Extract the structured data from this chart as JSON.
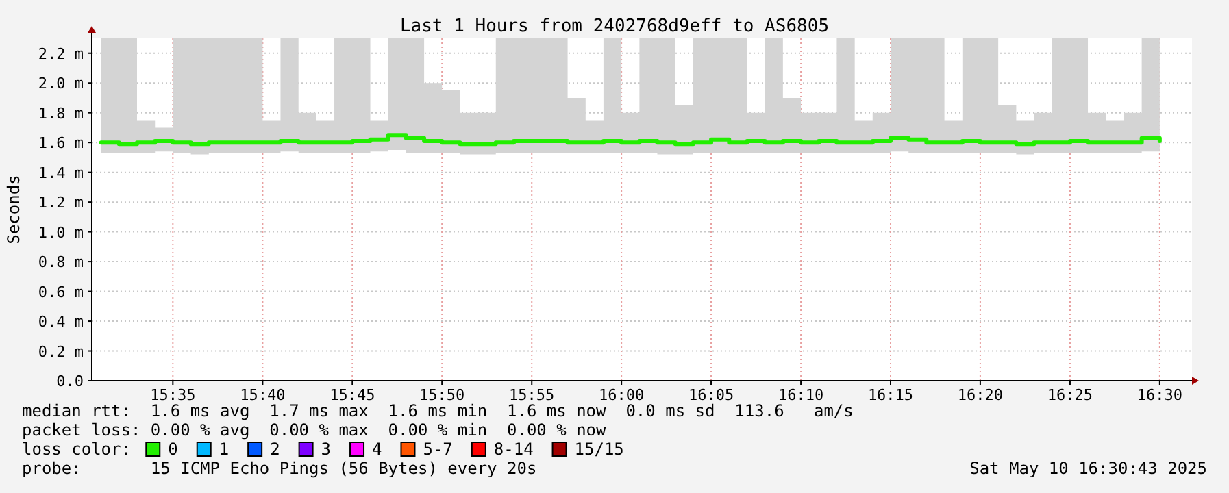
{
  "chart_data": {
    "type": "line",
    "title": "Last 1 Hours from 2402768d9eff to AS6805",
    "ylabel": "Seconds",
    "x": [
      15.5167,
      15.5333,
      15.55,
      15.5667,
      15.5833,
      15.6,
      15.6167,
      15.6333,
      15.65,
      15.6667,
      15.6833,
      15.7,
      15.7167,
      15.7333,
      15.75,
      15.7667,
      15.7833,
      15.8,
      15.8167,
      15.8333,
      15.85,
      15.8667,
      15.8833,
      15.9,
      15.9167,
      15.9333,
      15.95,
      15.9667,
      15.9833,
      16,
      16.0167,
      16.0333,
      16.05,
      16.0667,
      16.0833,
      16.1,
      16.1167,
      16.1333,
      16.15,
      16.1667,
      16.1833,
      16.2,
      16.2167,
      16.2333,
      16.25,
      16.2667,
      16.2833,
      16.3,
      16.3167,
      16.3333,
      16.35,
      16.3667,
      16.3833,
      16.4,
      16.4167,
      16.4333,
      16.45,
      16.4667,
      16.4833,
      16.5
    ],
    "xlim": [
      15.508,
      16.53
    ],
    "xticks": [
      {
        "value": 15.5833,
        "label": "15:35"
      },
      {
        "value": 15.6667,
        "label": "15:40"
      },
      {
        "value": 15.75,
        "label": "15:45"
      },
      {
        "value": 15.8333,
        "label": "15:50"
      },
      {
        "value": 15.9167,
        "label": "15:55"
      },
      {
        "value": 16,
        "label": "16:00"
      },
      {
        "value": 16.0833,
        "label": "16:05"
      },
      {
        "value": 16.1667,
        "label": "16:10"
      },
      {
        "value": 16.25,
        "label": "16:15"
      },
      {
        "value": 16.3333,
        "label": "16:20"
      },
      {
        "value": 16.4167,
        "label": "16:25"
      },
      {
        "value": 16.5,
        "label": "16:30"
      }
    ],
    "ylim": [
      0,
      2.3
    ],
    "yticks": [
      {
        "value": 0,
        "label": "0.0"
      },
      {
        "value": 0.2,
        "label": "0.2 m"
      },
      {
        "value": 0.4,
        "label": "0.4 m"
      },
      {
        "value": 0.6,
        "label": "0.6 m"
      },
      {
        "value": 0.8,
        "label": "0.8 m"
      },
      {
        "value": 1.0,
        "label": "1.0 m"
      },
      {
        "value": 1.2,
        "label": "1.2 m"
      },
      {
        "value": 1.4,
        "label": "1.4 m"
      },
      {
        "value": 1.6,
        "label": "1.6 m"
      },
      {
        "value": 1.8,
        "label": "1.8 m"
      },
      {
        "value": 2.0,
        "label": "2.0 m"
      },
      {
        "value": 2.2,
        "label": "2.2 m"
      }
    ],
    "grid": true,
    "legend": "bottom",
    "legend_title": "loss color:",
    "series": [
      {
        "name": "0",
        "color": "#22ee00",
        "values": [
          1.6,
          1.59,
          1.6,
          1.61,
          1.6,
          1.59,
          1.6,
          1.6,
          1.6,
          1.6,
          1.61,
          1.6,
          1.6,
          1.6,
          1.61,
          1.62,
          1.65,
          1.63,
          1.61,
          1.6,
          1.59,
          1.59,
          1.6,
          1.61,
          1.61,
          1.61,
          1.6,
          1.6,
          1.61,
          1.6,
          1.61,
          1.6,
          1.59,
          1.6,
          1.62,
          1.6,
          1.61,
          1.6,
          1.61,
          1.6,
          1.61,
          1.6,
          1.6,
          1.61,
          1.63,
          1.62,
          1.6,
          1.6,
          1.61,
          1.6,
          1.6,
          1.59,
          1.6,
          1.6,
          1.61,
          1.6,
          1.6,
          1.6,
          1.63,
          1.61
        ],
        "lower": [
          1.53,
          1.53,
          1.53,
          1.54,
          1.53,
          1.52,
          1.53,
          1.53,
          1.53,
          1.53,
          1.54,
          1.53,
          1.53,
          1.53,
          1.53,
          1.54,
          1.55,
          1.53,
          1.53,
          1.53,
          1.52,
          1.52,
          1.53,
          1.53,
          1.53,
          1.53,
          1.53,
          1.53,
          1.53,
          1.53,
          1.53,
          1.52,
          1.52,
          1.53,
          1.53,
          1.53,
          1.53,
          1.53,
          1.53,
          1.53,
          1.53,
          1.53,
          1.53,
          1.53,
          1.54,
          1.53,
          1.53,
          1.53,
          1.53,
          1.53,
          1.53,
          1.52,
          1.53,
          1.53,
          1.53,
          1.53,
          1.53,
          1.53,
          1.54,
          1.53
        ],
        "upper": [
          2.3,
          2.3,
          1.75,
          1.7,
          2.3,
          2.3,
          2.3,
          2.3,
          2.3,
          1.75,
          2.3,
          1.8,
          1.75,
          2.3,
          2.3,
          1.75,
          2.3,
          2.3,
          2.0,
          1.95,
          1.8,
          1.8,
          2.3,
          2.3,
          2.3,
          2.3,
          1.9,
          1.75,
          2.3,
          1.8,
          2.3,
          2.3,
          1.85,
          2.3,
          2.3,
          2.3,
          1.8,
          2.3,
          1.9,
          1.8,
          1.8,
          2.3,
          1.75,
          1.8,
          2.3,
          2.3,
          2.3,
          1.75,
          2.3,
          2.3,
          1.85,
          1.75,
          1.8,
          2.3,
          2.3,
          1.8,
          1.75,
          1.8,
          2.3,
          2.3
        ]
      },
      {
        "name": "1",
        "color": "#00b8ff",
        "values": [
          null,
          null,
          null,
          null,
          null,
          null,
          null,
          null,
          null,
          null,
          null,
          null,
          null,
          null,
          null,
          null,
          null,
          null,
          null,
          null,
          null,
          null,
          null,
          null,
          null,
          null,
          null,
          null,
          null,
          null,
          null,
          null,
          null,
          null,
          null,
          null,
          null,
          null,
          null,
          null,
          null,
          null,
          null,
          null,
          null,
          null,
          null,
          null,
          null,
          null,
          null,
          null,
          null,
          null,
          null,
          null,
          null,
          null,
          null,
          null
        ]
      },
      {
        "name": "2",
        "color": "#0059ff",
        "values": [
          null,
          null,
          null,
          null,
          null,
          null,
          null,
          null,
          null,
          null,
          null,
          null,
          null,
          null,
          null,
          null,
          null,
          null,
          null,
          null,
          null,
          null,
          null,
          null,
          null,
          null,
          null,
          null,
          null,
          null,
          null,
          null,
          null,
          null,
          null,
          null,
          null,
          null,
          null,
          null,
          null,
          null,
          null,
          null,
          null,
          null,
          null,
          null,
          null,
          null,
          null,
          null,
          null,
          null,
          null,
          null,
          null,
          null,
          null,
          null
        ]
      },
      {
        "name": "3",
        "color": "#7e00ff",
        "values": [
          null,
          null,
          null,
          null,
          null,
          null,
          null,
          null,
          null,
          null,
          null,
          null,
          null,
          null,
          null,
          null,
          null,
          null,
          null,
          null,
          null,
          null,
          null,
          null,
          null,
          null,
          null,
          null,
          null,
          null,
          null,
          null,
          null,
          null,
          null,
          null,
          null,
          null,
          null,
          null,
          null,
          null,
          null,
          null,
          null,
          null,
          null,
          null,
          null,
          null,
          null,
          null,
          null,
          null,
          null,
          null,
          null,
          null,
          null,
          null
        ]
      },
      {
        "name": "4",
        "color": "#ff00ff",
        "values": [
          null,
          null,
          null,
          null,
          null,
          null,
          null,
          null,
          null,
          null,
          null,
          null,
          null,
          null,
          null,
          null,
          null,
          null,
          null,
          null,
          null,
          null,
          null,
          null,
          null,
          null,
          null,
          null,
          null,
          null,
          null,
          null,
          null,
          null,
          null,
          null,
          null,
          null,
          null,
          null,
          null,
          null,
          null,
          null,
          null,
          null,
          null,
          null,
          null,
          null,
          null,
          null,
          null,
          null,
          null,
          null,
          null,
          null,
          null,
          null
        ]
      },
      {
        "name": "5-7",
        "color": "#ff5500",
        "values": [
          null,
          null,
          null,
          null,
          null,
          null,
          null,
          null,
          null,
          null,
          null,
          null,
          null,
          null,
          null,
          null,
          null,
          null,
          null,
          null,
          null,
          null,
          null,
          null,
          null,
          null,
          null,
          null,
          null,
          null,
          null,
          null,
          null,
          null,
          null,
          null,
          null,
          null,
          null,
          null,
          null,
          null,
          null,
          null,
          null,
          null,
          null,
          null,
          null,
          null,
          null,
          null,
          null,
          null,
          null,
          null,
          null,
          null,
          null,
          null
        ]
      },
      {
        "name": "8-14",
        "color": "#ff0000",
        "values": [
          null,
          null,
          null,
          null,
          null,
          null,
          null,
          null,
          null,
          null,
          null,
          null,
          null,
          null,
          null,
          null,
          null,
          null,
          null,
          null,
          null,
          null,
          null,
          null,
          null,
          null,
          null,
          null,
          null,
          null,
          null,
          null,
          null,
          null,
          null,
          null,
          null,
          null,
          null,
          null,
          null,
          null,
          null,
          null,
          null,
          null,
          null,
          null,
          null,
          null,
          null,
          null,
          null,
          null,
          null,
          null,
          null,
          null,
          null,
          null
        ]
      },
      {
        "name": "15/15",
        "color": "#a10000",
        "values": [
          null,
          null,
          null,
          null,
          null,
          null,
          null,
          null,
          null,
          null,
          null,
          null,
          null,
          null,
          null,
          null,
          null,
          null,
          null,
          null,
          null,
          null,
          null,
          null,
          null,
          null,
          null,
          null,
          null,
          null,
          null,
          null,
          null,
          null,
          null,
          null,
          null,
          null,
          null,
          null,
          null,
          null,
          null,
          null,
          null,
          null,
          null,
          null,
          null,
          null,
          null,
          null,
          null,
          null,
          null,
          null,
          null,
          null,
          null,
          null
        ]
      }
    ],
    "annotations": [
      "median rtt:  1.6 ms avg  1.7 ms max  1.6 ms min  1.6 ms now  0.0 ms sd  113.6   am/s",
      "packet loss: 0.00 % avg  0.00 % max  0.00 % min  0.00 % now",
      "probe:       15 ICMP Echo Pings (56 Bytes) every 20s",
      "Sat May 10 16:30:43 2025"
    ]
  }
}
